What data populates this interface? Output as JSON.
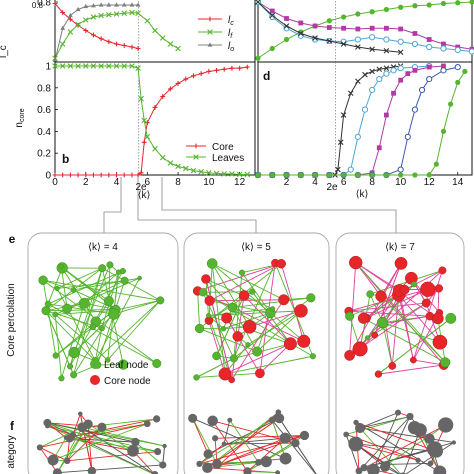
{
  "figure": {
    "panel_labels": {
      "b": "b",
      "d": "d",
      "e": "e",
      "f": "f"
    },
    "top_ylabel_frag": "l_c",
    "top_ytick_frag": "0.8",
    "core_ylabel": "n",
    "core_ylabel_sub": "core",
    "xlabel_left": "⟨k⟩",
    "xlabel_right": "⟨k⟩",
    "marker_2e_left": "2e",
    "marker_2e_right": "2e",
    "legend_top": [
      "l",
      "l",
      "l"
    ],
    "legend_top_subs": [
      "c",
      "f",
      "o"
    ],
    "legend_bottom": [
      "Core",
      "Leaves"
    ],
    "row_label_core_percolation": "Core percolation",
    "row_label_category": "ategory",
    "network_titles": [
      "⟨k⟩ = 4",
      "⟨k⟩ = 5",
      "⟨k⟩ = 7"
    ],
    "node_legend": [
      "Leaf node",
      "Core node"
    ],
    "colors": {
      "core": "#e8262a",
      "leaf": "#55b52e",
      "orphan": "#777777",
      "link": "#e0409a",
      "grey_node": "#666666"
    }
  },
  "chart_data": [
    {
      "type": "line",
      "panel": "top-left",
      "xlim": [
        0,
        13
      ],
      "ylim": [
        0,
        0.8
      ],
      "xticks": [],
      "yticks": [
        "0.8"
      ],
      "series": [
        {
          "name": "l_c",
          "color": "#e8262a",
          "marker": "plus",
          "x": [
            0,
            0.5,
            1,
            1.5,
            2,
            2.5,
            3,
            3.5,
            4,
            4.5,
            5,
            5.4
          ],
          "y": [
            0.78,
            0.66,
            0.57,
            0.49,
            0.42,
            0.36,
            0.31,
            0.27,
            0.24,
            0.22,
            0.2,
            0.18
          ]
        },
        {
          "name": "l_f",
          "color": "#55b52e",
          "marker": "x",
          "x": [
            0,
            0.5,
            1,
            1.5,
            2,
            2.5,
            3,
            3.5,
            4,
            4.5,
            5,
            5.4,
            6,
            6.5,
            7,
            7.5,
            8
          ],
          "y": [
            0.05,
            0.24,
            0.4,
            0.5,
            0.56,
            0.6,
            0.62,
            0.63,
            0.64,
            0.65,
            0.66,
            0.65,
            0.55,
            0.42,
            0.32,
            0.24,
            0.18
          ]
        },
        {
          "name": "l_o",
          "color": "#808080",
          "marker": "triangle",
          "x": [
            0,
            0.5,
            1,
            1.5,
            2,
            2.5,
            3,
            3.5,
            4,
            4.5,
            5,
            5.4
          ],
          "y": [
            0.02,
            0.45,
            0.62,
            0.7,
            0.74,
            0.75,
            0.76,
            0.76,
            0.76,
            0.76,
            0.76,
            0.76
          ]
        }
      ]
    },
    {
      "type": "line",
      "panel": "b",
      "xlim": [
        0,
        13
      ],
      "ylim": [
        0,
        1
      ],
      "xticks": [
        "0",
        "2",
        "4",
        "6",
        "8",
        "10",
        "12"
      ],
      "yticks": [
        "0",
        "0.2",
        "0.4",
        "0.6",
        "0.8",
        "1"
      ],
      "series": [
        {
          "name": "Core",
          "color": "#e8262a",
          "marker": "plus",
          "x": [
            0,
            0.5,
            1,
            1.5,
            2,
            2.5,
            3,
            3.5,
            4,
            4.5,
            5,
            5.4,
            5.6,
            5.8,
            6,
            6.5,
            7,
            7.5,
            8,
            8.5,
            9,
            9.5,
            10,
            10.5,
            11,
            11.5,
            12,
            12.5
          ],
          "y": [
            0,
            0,
            0,
            0,
            0,
            0,
            0,
            0,
            0,
            0,
            0,
            0,
            0.02,
            0.3,
            0.48,
            0.62,
            0.72,
            0.79,
            0.84,
            0.88,
            0.91,
            0.93,
            0.95,
            0.96,
            0.97,
            0.98,
            0.98,
            0.99
          ]
        },
        {
          "name": "Leaves",
          "color": "#55b52e",
          "marker": "x",
          "x": [
            0,
            0.5,
            1,
            1.5,
            2,
            2.5,
            3,
            3.5,
            4,
            4.5,
            5,
            5.4,
            5.6,
            5.8,
            6,
            6.5,
            7,
            7.5,
            8,
            8.5,
            9,
            9.5,
            10,
            10.5,
            11,
            11.5,
            12,
            12.5
          ],
          "y": [
            1,
            1,
            1,
            1,
            1,
            1,
            1,
            1,
            1,
            1,
            1,
            0.98,
            0.7,
            0.5,
            0.35,
            0.24,
            0.16,
            0.11,
            0.08,
            0.06,
            0.04,
            0.03,
            0.02,
            0.015,
            0.01,
            0.01,
            0.005,
            0.005
          ]
        }
      ]
    },
    {
      "type": "line",
      "panel": "top-right",
      "xlim": [
        0,
        15
      ],
      "ylim": [
        0,
        0.8
      ],
      "xticks": [],
      "yticks": [],
      "series": [
        {
          "name": "",
          "color": "#55b52e",
          "marker": "circle",
          "x": [
            0,
            1,
            2,
            3,
            4,
            5,
            6,
            7,
            8,
            9,
            10,
            11,
            12,
            13,
            14,
            15
          ],
          "y": [
            0.05,
            0.18,
            0.3,
            0.4,
            0.48,
            0.55,
            0.6,
            0.64,
            0.67,
            0.7,
            0.73,
            0.75,
            0.76,
            0.78,
            0.79,
            0.8
          ]
        },
        {
          "name": "",
          "color": "#b13aa6",
          "marker": "square",
          "x": [
            0,
            1,
            2,
            3,
            4,
            5,
            6,
            7,
            8,
            9,
            10,
            11,
            12,
            13,
            14,
            15
          ],
          "y": [
            0.8,
            0.68,
            0.58,
            0.52,
            0.48,
            0.46,
            0.45,
            0.44,
            0.45,
            0.45,
            0.44,
            0.38,
            0.3,
            0.24,
            0.2,
            0.17
          ]
        },
        {
          "name": "",
          "color": "#4fa6d3",
          "marker": "circle-open",
          "x": [
            0,
            1,
            2,
            3,
            4,
            5,
            6,
            7,
            8,
            9,
            10,
            11,
            12,
            13,
            14,
            15
          ],
          "y": [
            0.8,
            0.6,
            0.45,
            0.35,
            0.3,
            0.28,
            0.27,
            0.3,
            0.33,
            0.3,
            0.27,
            0.24,
            0.2,
            0.18,
            0.16,
            0.14
          ]
        },
        {
          "name": "",
          "color": "#333333",
          "marker": "x",
          "x": [
            0,
            1,
            2,
            3,
            4,
            5,
            6,
            7,
            8,
            9,
            10
          ],
          "y": [
            0.8,
            0.62,
            0.48,
            0.38,
            0.32,
            0.28,
            0.24,
            0.2,
            0.17,
            0.15,
            0.13
          ]
        }
      ]
    },
    {
      "type": "line",
      "panel": "d",
      "xlim": [
        0,
        15
      ],
      "ylim": [
        0,
        1
      ],
      "xticks": [
        "2",
        "4",
        "6",
        "8",
        "10",
        "12",
        "14"
      ],
      "yticks": [],
      "series": [
        {
          "name": "",
          "color": "#333333",
          "marker": "x",
          "x": [
            0,
            1,
            2,
            3,
            4,
            5,
            5.4,
            5.6,
            5.8,
            6,
            6.5,
            7,
            7.5,
            8,
            8.5,
            9,
            9.5,
            10
          ],
          "y": [
            0,
            0,
            0,
            0,
            0,
            0,
            0,
            0.05,
            0.3,
            0.55,
            0.75,
            0.86,
            0.92,
            0.95,
            0.97,
            0.98,
            0.99,
            1
          ]
        },
        {
          "name": "",
          "color": "#4fa6d3",
          "marker": "circle-open",
          "x": [
            0,
            1,
            2,
            3,
            4,
            5,
            6,
            6.5,
            7,
            7.5,
            8,
            8.5,
            9,
            9.5,
            10,
            11,
            12
          ],
          "y": [
            0,
            0,
            0,
            0,
            0,
            0,
            0,
            0.05,
            0.35,
            0.6,
            0.78,
            0.88,
            0.93,
            0.96,
            0.98,
            0.99,
            1
          ]
        },
        {
          "name": "",
          "color": "#b13aa6",
          "marker": "square",
          "x": [
            0,
            1,
            2,
            3,
            4,
            5,
            6,
            7,
            8,
            8.5,
            9,
            9.5,
            10,
            10.5,
            11,
            12,
            13
          ],
          "y": [
            0,
            0,
            0,
            0,
            0,
            0,
            0,
            0,
            0.02,
            0.25,
            0.55,
            0.75,
            0.87,
            0.93,
            0.96,
            0.99,
            1
          ]
        },
        {
          "name": "",
          "color": "#3a57b0",
          "marker": "circle-open",
          "x": [
            0,
            1,
            2,
            3,
            4,
            5,
            6,
            7,
            8,
            9,
            10,
            10.5,
            11,
            11.5,
            12,
            13,
            14
          ],
          "y": [
            0,
            0,
            0,
            0,
            0,
            0,
            0,
            0,
            0,
            0,
            0.05,
            0.35,
            0.6,
            0.78,
            0.88,
            0.96,
            0.99
          ]
        },
        {
          "name": "",
          "color": "#55b52e",
          "marker": "circle",
          "x": [
            0,
            1,
            2,
            3,
            4,
            5,
            6,
            7,
            8,
            9,
            10,
            11,
            12,
            12.5,
            13,
            13.5,
            14,
            14.5
          ],
          "y": [
            0,
            0,
            0,
            0,
            0,
            0,
            0,
            0,
            0,
            0,
            0,
            0,
            0,
            0.1,
            0.4,
            0.65,
            0.85,
            0.95
          ]
        }
      ]
    }
  ]
}
